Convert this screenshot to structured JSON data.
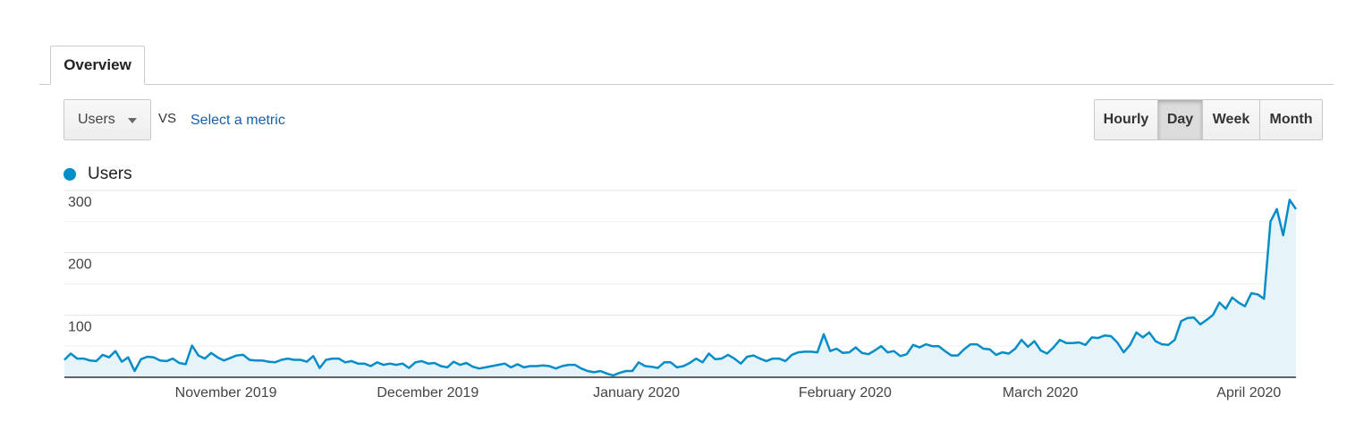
{
  "tabs": [
    {
      "label": "Overview",
      "active": true
    }
  ],
  "toolbar": {
    "metric": "Users",
    "vs_label": "VS",
    "compare_link": "Select a metric",
    "periods": [
      {
        "label": "Hourly",
        "active": false
      },
      {
        "label": "Day",
        "active": true
      },
      {
        "label": "Week",
        "active": false
      },
      {
        "label": "Month",
        "active": false
      }
    ]
  },
  "colors": {
    "series": "#058dc7",
    "area": "#e6f3f9",
    "link": "#1a5fa6"
  },
  "chart_data": {
    "type": "area",
    "series": [
      {
        "name": "Users"
      }
    ],
    "ylim": [
      0,
      300
    ],
    "yticks": [
      "300",
      "200",
      "100"
    ],
    "ytick_values": [
      300,
      200,
      100
    ],
    "xticks": [
      "November 2019",
      "December 2019",
      "January 2020",
      "February 2020",
      "March 2020",
      "April 2020"
    ],
    "x_start": "2019-10-08",
    "x_end": "2020-04-08",
    "xtick_dates": [
      "2019-11-01",
      "2019-12-01",
      "2020-01-01",
      "2020-02-01",
      "2020-03-01",
      "2020-04-01"
    ],
    "values": [
      28,
      38,
      30,
      30,
      27,
      26,
      36,
      32,
      42,
      25,
      32,
      10,
      29,
      33,
      32,
      27,
      26,
      30,
      23,
      21,
      51,
      35,
      30,
      39,
      32,
      27,
      31,
      35,
      36,
      28,
      27,
      27,
      25,
      24,
      28,
      30,
      28,
      28,
      25,
      34,
      15,
      28,
      30,
      30,
      24,
      26,
      22,
      22,
      18,
      24,
      20,
      22,
      20,
      22,
      15,
      24,
      26,
      22,
      23,
      18,
      16,
      25,
      20,
      23,
      17,
      14,
      16,
      18,
      20,
      22,
      16,
      21,
      16,
      18,
      18,
      19,
      18,
      14,
      18,
      20,
      20,
      14,
      10,
      8,
      10,
      6,
      3,
      7,
      10,
      10,
      24,
      18,
      17,
      15,
      24,
      24,
      16,
      18,
      23,
      30,
      24,
      38,
      29,
      30,
      36,
      30,
      22,
      33,
      35,
      30,
      26,
      30,
      30,
      26,
      36,
      40,
      41,
      41,
      40,
      69,
      42,
      46,
      39,
      40,
      48,
      39,
      37,
      43,
      50,
      40,
      42,
      34,
      37,
      52,
      48,
      53,
      50,
      50,
      42,
      35,
      35,
      45,
      53,
      53,
      46,
      45,
      36,
      40,
      38,
      46,
      60,
      49,
      58,
      43,
      38,
      48,
      60,
      55,
      55,
      56,
      52,
      64,
      63,
      67,
      66,
      56,
      40,
      52,
      72,
      64,
      72,
      58,
      53,
      52,
      60,
      90,
      95,
      96,
      85,
      92,
      100,
      120,
      110,
      128,
      120,
      114,
      135,
      133,
      126,
      250,
      270,
      228,
      285,
      270
    ]
  }
}
